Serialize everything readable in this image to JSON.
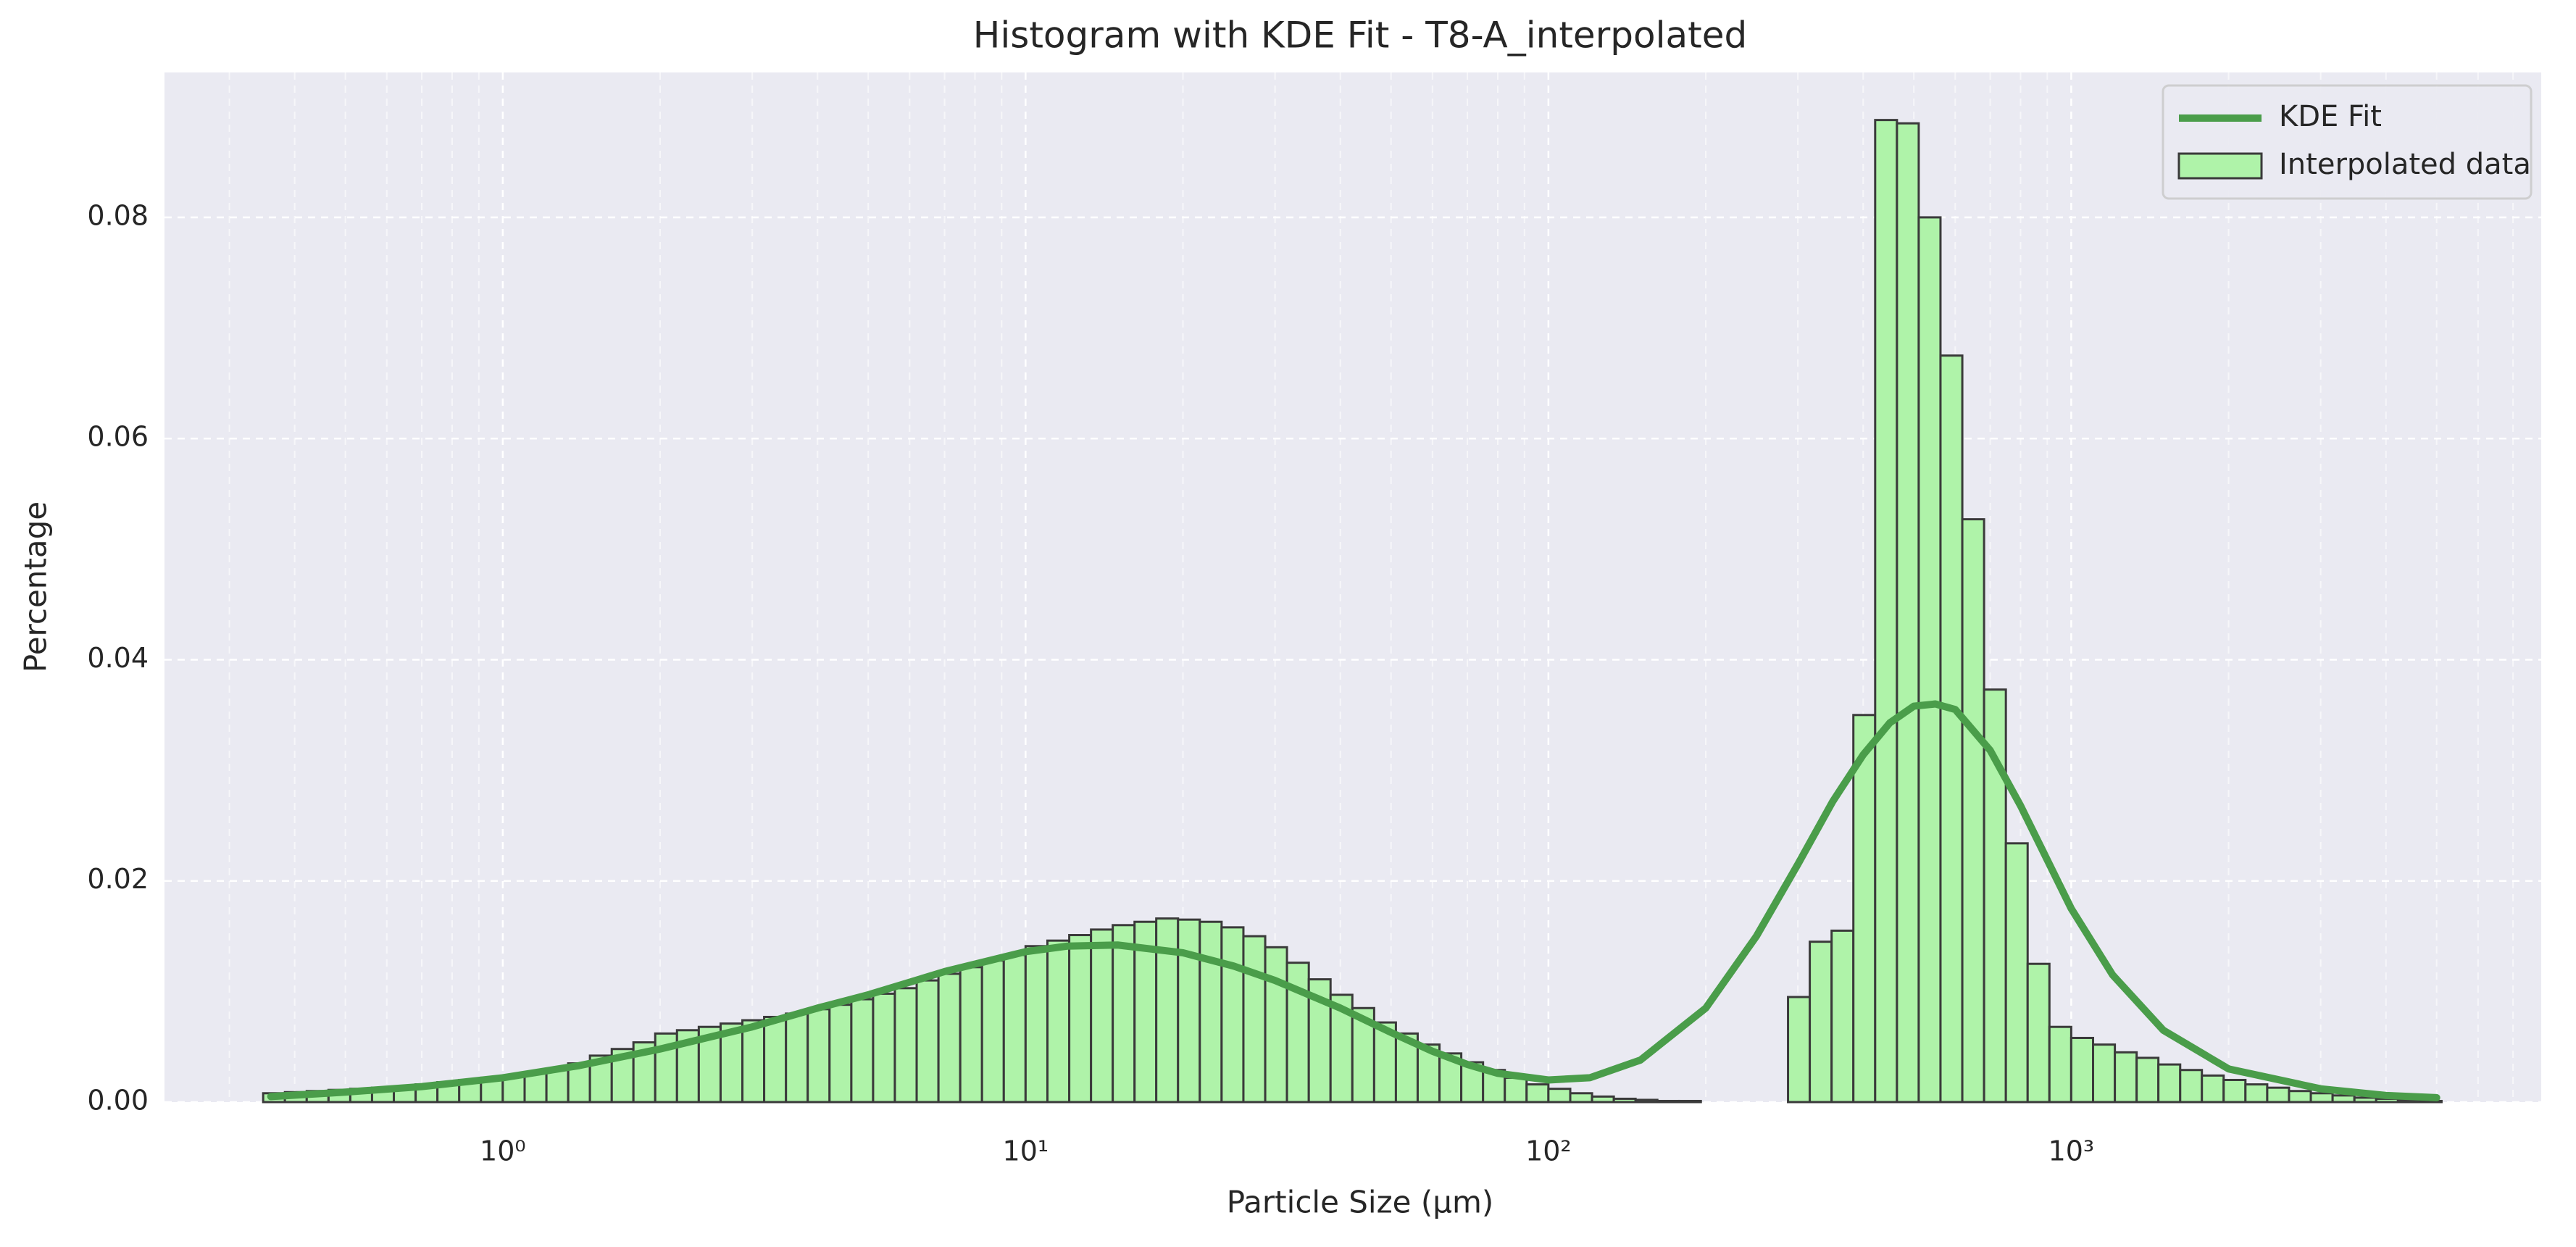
{
  "chart_data": {
    "type": "histogram",
    "title": "Histogram with KDE Fit - T8-A_interpolated",
    "xlabel": "Particle Size (μm)",
    "ylabel": "Percentage",
    "xscale": "log",
    "grid": true,
    "legend": "upper right",
    "xlim": [
      0.2254,
      7925
    ],
    "ylim": [
      0,
      0.0931
    ],
    "xticks": [
      {
        "value": 1,
        "label": "10⁰"
      },
      {
        "value": 10,
        "label": "10¹"
      },
      {
        "value": 100,
        "label": "10²"
      },
      {
        "value": 1000,
        "label": "10³"
      }
    ],
    "xminorticks": [
      0.3,
      0.4,
      0.5,
      0.6,
      0.7,
      0.8,
      0.9,
      2,
      3,
      4,
      5,
      6,
      7,
      8,
      9,
      20,
      30,
      40,
      50,
      60,
      70,
      80,
      90,
      200,
      300,
      400,
      500,
      600,
      700,
      800,
      900,
      2000,
      3000,
      4000,
      5000,
      6000,
      7000
    ],
    "yticks": [
      {
        "value": 0,
        "label": "0.00"
      },
      {
        "value": 0.02,
        "label": "0.02"
      },
      {
        "value": 0.04,
        "label": "0.04"
      },
      {
        "value": 0.06,
        "label": "0.06"
      },
      {
        "value": 0.08,
        "label": "0.08"
      }
    ],
    "bins": [
      0.3481,
      0.3831,
      0.4217,
      0.4642,
      0.5109,
      0.5623,
      0.619,
      0.6813,
      0.7499,
      0.8254,
      0.9085,
      1,
      1.101,
      1.212,
      1.334,
      1.468,
      1.616,
      1.778,
      1.957,
      2.154,
      2.371,
      2.61,
      2.873,
      3.162,
      3.481,
      3.831,
      4.217,
      4.642,
      5.109,
      5.623,
      6.19,
      6.813,
      7.499,
      8.254,
      9.085,
      10,
      11.01,
      12.12,
      13.34,
      14.68,
      16.16,
      17.78,
      19.57,
      21.54,
      23.71,
      26.1,
      28.73,
      31.62,
      34.81,
      38.31,
      42.17,
      46.42,
      51.09,
      56.23,
      61.9,
      68.13,
      74.99,
      82.54,
      90.85,
      100,
      110.1,
      121.2,
      133.4,
      146.8,
      161.6,
      177.8,
      195.7,
      215.4,
      237.1,
      261.0,
      287.3,
      316.2,
      348.1,
      383.1,
      421.7,
      464.2,
      510.9,
      562.3,
      619.0,
      681.3,
      749.9,
      825.4,
      908.5,
      1000,
      1101,
      1212,
      1334,
      1468,
      1616,
      1778,
      1957,
      2154,
      2371,
      2610,
      2873,
      3162,
      3481,
      3831,
      4217,
      4642,
      5109
    ],
    "series": [
      {
        "name": "KDE Fit",
        "type": "line",
        "color": "#4a9d4a",
        "x": [
          0.36,
          0.5,
          0.7,
          1,
          1.4,
          2,
          3,
          4,
          5,
          7,
          10,
          12,
          15,
          20,
          25,
          30,
          40,
          50,
          60,
          70,
          80,
          100,
          120,
          150,
          200,
          250,
          300,
          350,
          400,
          450,
          500,
          550,
          600,
          700,
          800,
          1000,
          1200,
          1500,
          2000,
          3000,
          4000,
          5000
        ],
        "values": [
          0.0005,
          0.0009,
          0.0014,
          0.0022,
          0.0033,
          0.0048,
          0.0068,
          0.0085,
          0.0097,
          0.0118,
          0.0136,
          0.0141,
          0.0142,
          0.0135,
          0.0123,
          0.011,
          0.0085,
          0.0063,
          0.0046,
          0.0034,
          0.0026,
          0.002,
          0.0022,
          0.0038,
          0.0085,
          0.015,
          0.0215,
          0.0272,
          0.0314,
          0.0343,
          0.0358,
          0.036,
          0.0355,
          0.0318,
          0.0268,
          0.0175,
          0.0115,
          0.0065,
          0.003,
          0.0012,
          0.0006,
          0.0004
        ]
      },
      {
        "name": "Interpolated data",
        "type": "histogram",
        "color": "#aff3a9",
        "edgecolor": "#3a3a3a",
        "values": [
          0.0008,
          0.0009,
          0.001,
          0.0011,
          0.0012,
          0.0013,
          0.0014,
          0.0016,
          0.0018,
          0.002,
          0.0022,
          0.0024,
          0.0027,
          0.003,
          0.0035,
          0.0042,
          0.0048,
          0.0054,
          0.0062,
          0.0065,
          0.0068,
          0.0071,
          0.0074,
          0.0077,
          0.008,
          0.0084,
          0.0088,
          0.0093,
          0.0098,
          0.0103,
          0.011,
          0.0116,
          0.0122,
          0.0128,
          0.0133,
          0.0141,
          0.0146,
          0.0151,
          0.0156,
          0.016,
          0.0163,
          0.0166,
          0.0165,
          0.0163,
          0.0158,
          0.015,
          0.014,
          0.0126,
          0.0111,
          0.0097,
          0.0085,
          0.0072,
          0.0062,
          0.0052,
          0.0044,
          0.0036,
          0.0029,
          0.0022,
          0.0016,
          0.0012,
          0.0008,
          0.0005,
          0.0003,
          0.0002,
          0.0001,
          0.0001,
          0,
          0,
          0,
          0,
          0.0095,
          0.0145,
          0.0155,
          0.035,
          0.0888,
          0.0885,
          0.08,
          0.0675,
          0.0527,
          0.0373,
          0.0234,
          0.0125,
          0.0068,
          0.0058,
          0.0052,
          0.0045,
          0.004,
          0.0034,
          0.0029,
          0.0024,
          0.002,
          0.0016,
          0.0013,
          0.001,
          0.0008,
          0.0006,
          0.0004,
          0.0003,
          0.0002,
          0.0001
        ]
      }
    ]
  }
}
